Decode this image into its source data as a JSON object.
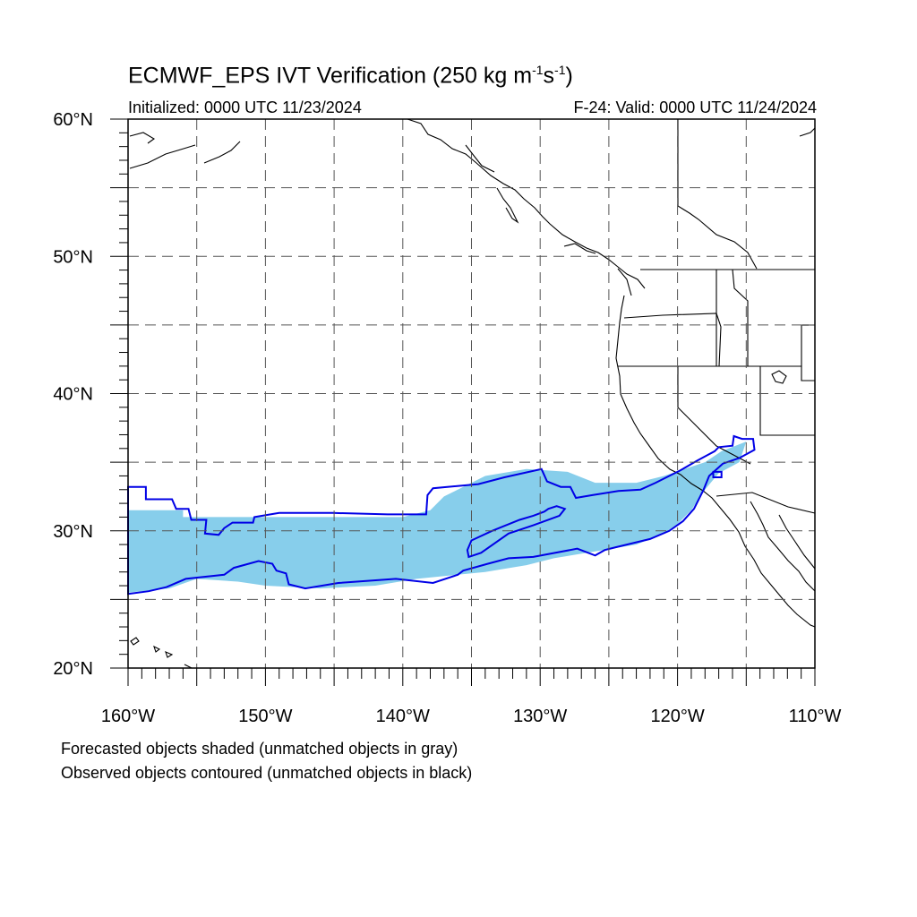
{
  "header": {
    "title_main": "ECMWF_EPS IVT Verification (250 kg m",
    "title_sup1": "-1",
    "title_mid": "s",
    "title_sup2": "-1",
    "title_end": ")",
    "initialized": "Initialized: 0000 UTC 11/23/2024",
    "valid": "F-24: Valid: 0000 UTC 11/24/2024"
  },
  "axes": {
    "lon_range": [
      -160,
      -110
    ],
    "lat_range": [
      20,
      60
    ],
    "lon_ticks": [
      {
        "value": -160,
        "label": "160°W"
      },
      {
        "value": -150,
        "label": "150°W"
      },
      {
        "value": -140,
        "label": "140°W"
      },
      {
        "value": -130,
        "label": "130°W"
      },
      {
        "value": -120,
        "label": "120°W"
      },
      {
        "value": -110,
        "label": "110°W"
      }
    ],
    "lat_ticks": [
      {
        "value": 20,
        "label": "20°N"
      },
      {
        "value": 30,
        "label": "30°N"
      },
      {
        "value": 40,
        "label": "40°N"
      },
      {
        "value": 50,
        "label": "50°N"
      },
      {
        "value": 60,
        "label": "60°N"
      }
    ],
    "grid_step_deg": 5,
    "grid": true
  },
  "legend": {
    "line1": "Forecasted objects shaded (unmatched objects in gray)",
    "line2": "Observed objects contoured (unmatched objects in black)"
  },
  "colors": {
    "forecast_fill": "#87ceeb",
    "observed_contour": "#0000e6",
    "coastline": "#000000",
    "grid": "#555555"
  },
  "forecast_object": [
    [
      -160,
      31.5
    ],
    [
      -156,
      31.5
    ],
    [
      -156,
      31
    ],
    [
      -154,
      31
    ],
    [
      -150,
      31
    ],
    [
      -144,
      31
    ],
    [
      -140,
      31
    ],
    [
      -138,
      31.5
    ],
    [
      -137,
      32.5
    ],
    [
      -136,
      33
    ],
    [
      -134,
      34
    ],
    [
      -131,
      34.5
    ],
    [
      -128,
      34.3
    ],
    [
      -126,
      33.5
    ],
    [
      -123,
      33.5
    ],
    [
      -121,
      34
    ],
    [
      -119.5,
      34.5
    ],
    [
      -118,
      35
    ],
    [
      -116.8,
      35.8
    ],
    [
      -115,
      36.5
    ],
    [
      -115.5,
      35
    ],
    [
      -117,
      34.2
    ],
    [
      -118,
      33
    ],
    [
      -119,
      31.5
    ],
    [
      -120,
      30.5
    ],
    [
      -121,
      29.8
    ],
    [
      -123,
      29
    ],
    [
      -126,
      28.5
    ],
    [
      -129,
      28
    ],
    [
      -131,
      27.5
    ],
    [
      -134,
      27
    ],
    [
      -136,
      26.8
    ],
    [
      -139,
      26.5
    ],
    [
      -142,
      26
    ],
    [
      -146,
      25.8
    ],
    [
      -150,
      26
    ],
    [
      -152,
      26.3
    ],
    [
      -155,
      26.5
    ],
    [
      -157,
      25.8
    ],
    [
      -160,
      25.5
    ]
  ],
  "observed_object_outer": [
    [
      -160,
      33.2
    ],
    [
      -158.7,
      33.2
    ],
    [
      -158.7,
      32.3
    ],
    [
      -156.8,
      32.3
    ],
    [
      -156.5,
      31.6
    ],
    [
      -155.6,
      31.6
    ],
    [
      -155.4,
      30.8
    ],
    [
      -154.3,
      30.8
    ],
    [
      -154.4,
      29.8
    ],
    [
      -153.4,
      29.7
    ],
    [
      -153,
      30.2
    ],
    [
      -152.4,
      30.6
    ],
    [
      -150.9,
      30.6
    ],
    [
      -150.8,
      31
    ],
    [
      -149,
      31.3
    ],
    [
      -145.1,
      31.3
    ],
    [
      -141.1,
      31.2
    ],
    [
      -138.3,
      31.2
    ],
    [
      -138.2,
      32.6
    ],
    [
      -137.8,
      33.1
    ],
    [
      -134.5,
      33.4
    ],
    [
      -132.6,
      33.9
    ],
    [
      -129.9,
      34.5
    ],
    [
      -129.5,
      33.6
    ],
    [
      -128.5,
      33.2
    ],
    [
      -127.8,
      33.2
    ],
    [
      -127.4,
      32.4
    ],
    [
      -126.2,
      32.6
    ],
    [
      -124.3,
      32.9
    ],
    [
      -122.7,
      33
    ],
    [
      -121.6,
      33.5
    ],
    [
      -119.8,
      34.4
    ],
    [
      -118.6,
      35.1
    ],
    [
      -117.3,
      35.8
    ],
    [
      -117,
      36.1
    ],
    [
      -116,
      36.2
    ],
    [
      -115.9,
      36.9
    ],
    [
      -115.3,
      36.7
    ],
    [
      -114.5,
      36.7
    ],
    [
      -114.4,
      35.9
    ],
    [
      -115.5,
      35.3
    ],
    [
      -116.7,
      34.9
    ],
    [
      -117.7,
      34
    ],
    [
      -118.1,
      33
    ],
    [
      -118.8,
      31.6
    ],
    [
      -119.6,
      30.7
    ],
    [
      -120.6,
      30
    ],
    [
      -122,
      29.4
    ],
    [
      -124.5,
      28.8
    ],
    [
      -125.3,
      28.6
    ],
    [
      -126,
      28.2
    ],
    [
      -127.3,
      28.7
    ],
    [
      -130.5,
      28.1
    ],
    [
      -132.3,
      28
    ],
    [
      -133.8,
      27.6
    ],
    [
      -135.6,
      27.1
    ],
    [
      -136,
      26.8
    ],
    [
      -137.8,
      26.2
    ],
    [
      -140.5,
      26.5
    ],
    [
      -144.7,
      26.2
    ],
    [
      -147.1,
      25.8
    ],
    [
      -148.3,
      26.1
    ],
    [
      -148.5,
      26.9
    ],
    [
      -149.2,
      27.1
    ],
    [
      -149.5,
      27.6
    ],
    [
      -150.5,
      27.8
    ],
    [
      -152.3,
      27.3
    ],
    [
      -153,
      26.8
    ],
    [
      -155.8,
      26.5
    ],
    [
      -157.2,
      25.9
    ],
    [
      -158.5,
      25.6
    ],
    [
      -160,
      25.4
    ]
  ],
  "observed_object_inner": [
    [
      -135,
      29.3
    ],
    [
      -133.5,
      30
    ],
    [
      -131.5,
      30.8
    ],
    [
      -130.5,
      31.1
    ],
    [
      -129.7,
      31.4
    ],
    [
      -129.4,
      31.6
    ],
    [
      -128.8,
      31.8
    ],
    [
      -128.2,
      31.6
    ],
    [
      -128.6,
      31.1
    ],
    [
      -130.5,
      30.4
    ],
    [
      -132.3,
      29.8
    ],
    [
      -134.3,
      28.4
    ],
    [
      -135.2,
      28.1
    ],
    [
      -135.3,
      28.6
    ]
  ],
  "observed_object_small": [
    [
      -117.4,
      34.3
    ],
    [
      -116.8,
      34.3
    ],
    [
      -116.8,
      33.9
    ],
    [
      -117.4,
      33.9
    ]
  ]
}
